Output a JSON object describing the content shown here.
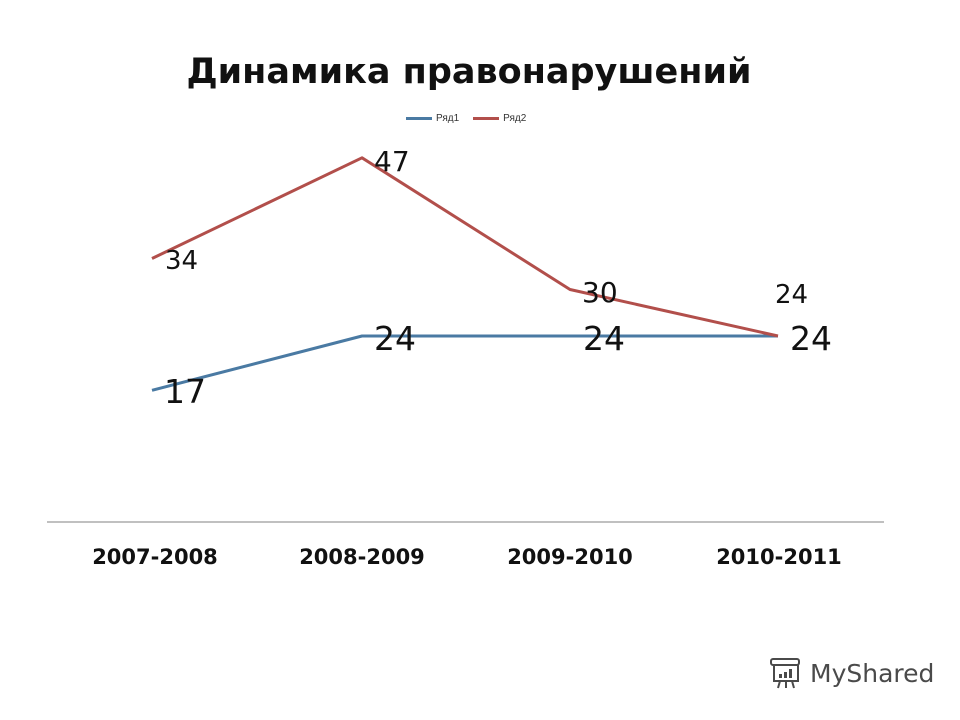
{
  "chart_data": {
    "type": "line",
    "title": "Динамика правонарушений",
    "categories": [
      "2007-2008",
      "2008-2009",
      "2009-2010",
      "2010-2011"
    ],
    "series": [
      {
        "name": "Ряд1",
        "values": [
          17,
          24,
          24,
          24
        ],
        "color": "#4a7aa3"
      },
      {
        "name": "Ряд2",
        "values": [
          34,
          47,
          30,
          24
        ],
        "color": "#b24f4b"
      }
    ],
    "xlabel": "",
    "ylabel": "",
    "ylim": [
      0,
      50
    ],
    "grid": false,
    "legend_position": "top"
  },
  "labels": {
    "s1": [
      "17",
      "24",
      "24",
      "24"
    ],
    "s2": [
      "34",
      "47",
      "30",
      "24"
    ]
  },
  "watermark": {
    "text": "MyShared"
  }
}
